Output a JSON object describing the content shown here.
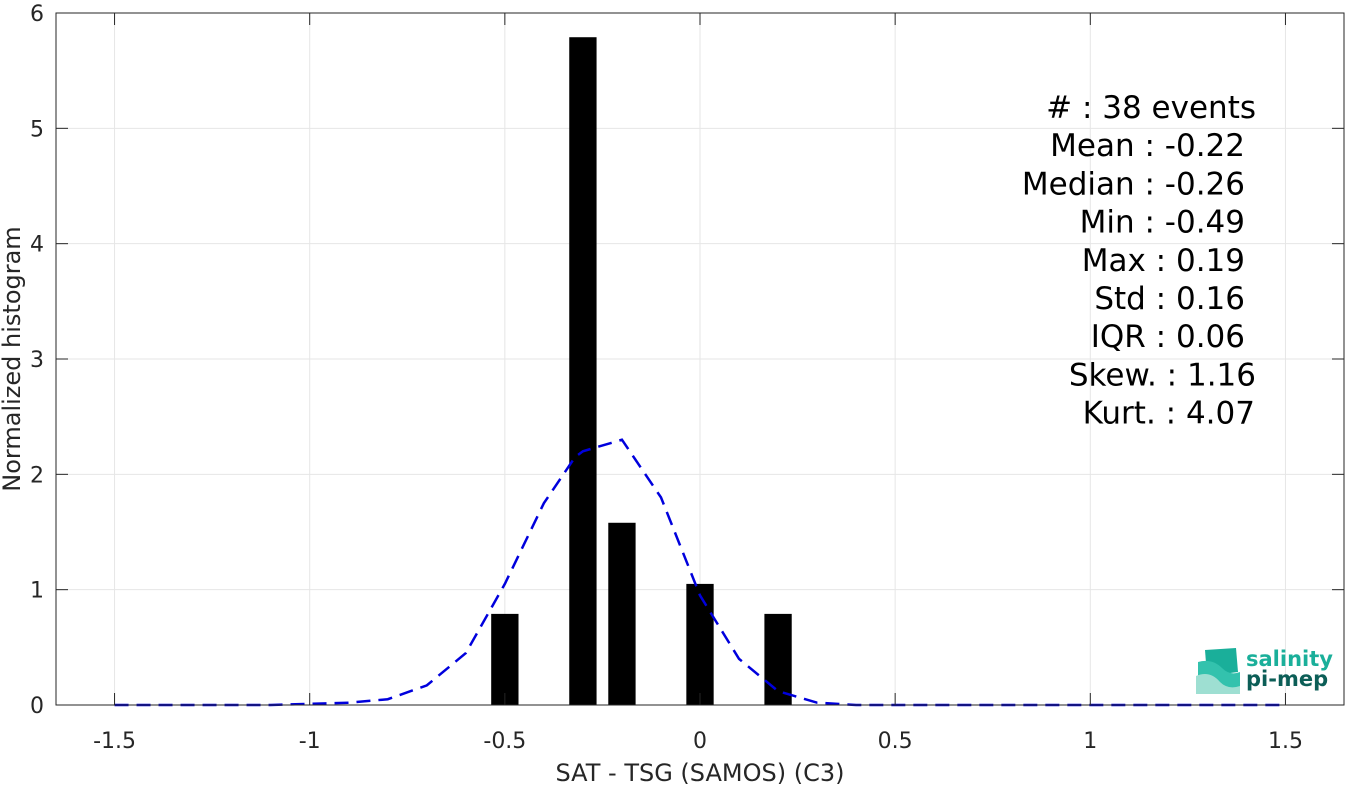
{
  "chart_data": {
    "type": "bar",
    "xlabel": "SAT - TSG (SAMOS) (C3)",
    "ylabel": "Normalized histogram",
    "xlim": [
      -1.65,
      1.65
    ],
    "ylim": [
      0,
      6
    ],
    "grid": true,
    "x_ticks": [
      -1.5,
      -1,
      -0.5,
      0,
      0.5,
      1,
      1.5
    ],
    "x_tick_labels": [
      "-1.5",
      "-1",
      "-0.5",
      "0",
      "0.5",
      "1",
      "1.5"
    ],
    "y_ticks": [
      0,
      1,
      2,
      3,
      4,
      5,
      6
    ],
    "y_tick_labels": [
      "0",
      "1",
      "2",
      "3",
      "4",
      "5",
      "6"
    ],
    "bar_width": 0.07,
    "bar_color": "#000000",
    "bars": [
      {
        "x": -0.5,
        "value": 0.79
      },
      {
        "x": -0.3,
        "value": 5.79
      },
      {
        "x": -0.2,
        "value": 1.58
      },
      {
        "x": 0.0,
        "value": 1.05
      },
      {
        "x": 0.2,
        "value": 0.79
      }
    ],
    "series": [
      {
        "style": "dashed",
        "color": "#0000dd",
        "x": [
          -1.5,
          -1.3,
          -1.1,
          -0.9,
          -0.8,
          -0.7,
          -0.6,
          -0.5,
          -0.4,
          -0.32,
          -0.3,
          -0.2,
          -0.1,
          0.0,
          0.1,
          0.2,
          0.3,
          0.4,
          0.6,
          0.8,
          1.0,
          1.5
        ],
        "y": [
          0,
          0,
          0,
          0.02,
          0.05,
          0.17,
          0.45,
          1.05,
          1.75,
          2.15,
          2.2,
          2.3,
          1.8,
          0.95,
          0.4,
          0.12,
          0.02,
          0,
          0,
          0,
          0,
          0
        ]
      }
    ],
    "annotations": [
      {
        "text": "#  : 38 events"
      },
      {
        "text": "Mean : -0.22"
      },
      {
        "text": "Median : -0.26"
      },
      {
        "text": "Min : -0.49"
      },
      {
        "text": "Max : 0.19"
      },
      {
        "text": "Std : 0.16"
      },
      {
        "text": "IQR : 0.06"
      },
      {
        "text": "Skew. : 1.16"
      },
      {
        "text": "Kurt. : 4.07"
      }
    ]
  },
  "logo": {
    "line1": "salinity",
    "line2": "pi-mep",
    "color_top": "#1aaf9a",
    "color_bottom": "#0c5e57"
  }
}
